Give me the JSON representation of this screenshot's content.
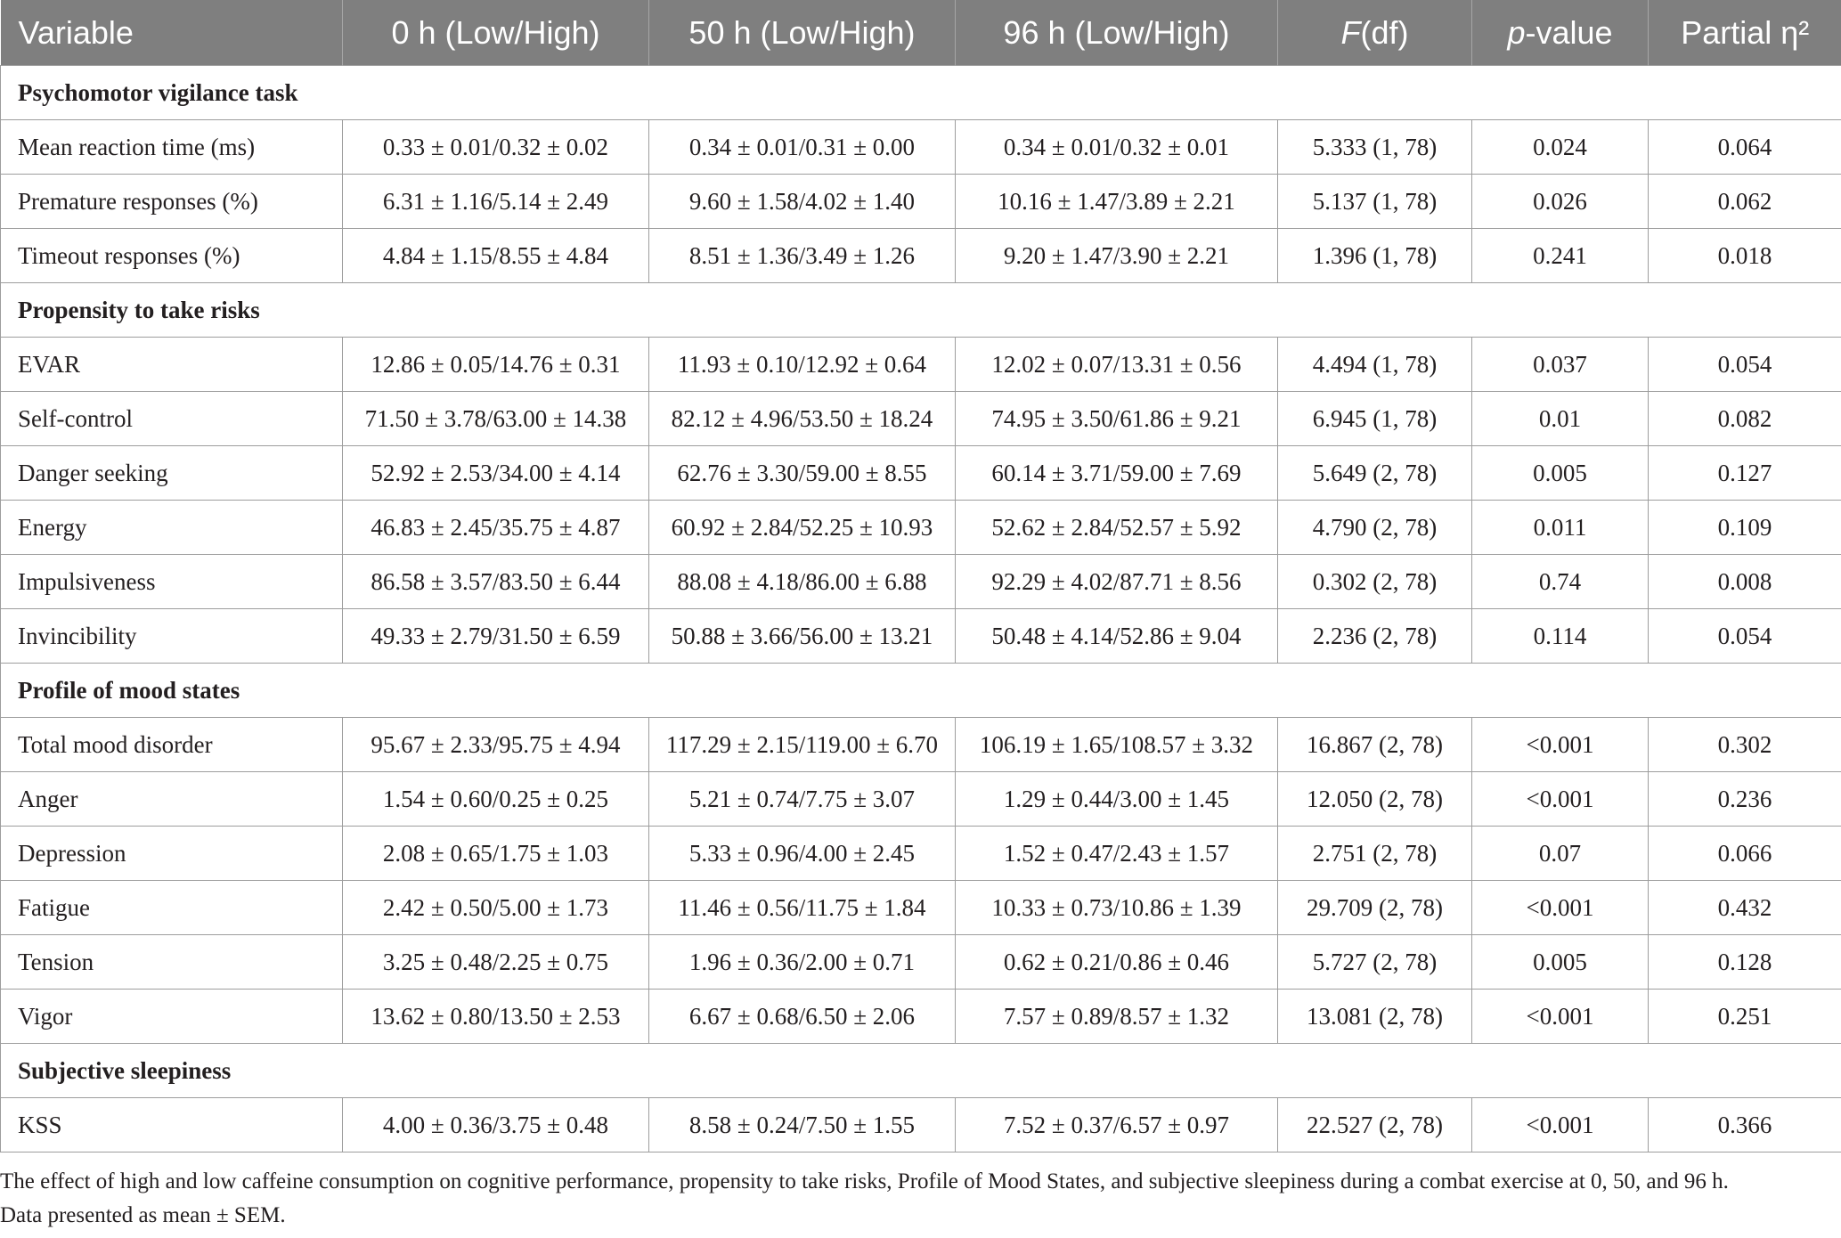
{
  "table": {
    "headers": [
      {
        "pre": "Variable",
        "em": "",
        "post": ""
      },
      {
        "pre": "0 h (Low/High)",
        "em": "",
        "post": ""
      },
      {
        "pre": "50 h (Low/High)",
        "em": "",
        "post": ""
      },
      {
        "pre": "96 h (Low/High)",
        "em": "",
        "post": ""
      },
      {
        "pre": "",
        "em": "F",
        "post": "(df)"
      },
      {
        "pre": "",
        "em": "p",
        "post": "-value"
      },
      {
        "pre": "Partial η²",
        "em": "",
        "post": ""
      }
    ],
    "sections": [
      {
        "title": "Psychomotor vigilance task",
        "rows": [
          [
            "Mean reaction time (ms)",
            "0.33 ± 0.01/0.32 ± 0.02",
            "0.34 ± 0.01/0.31 ± 0.00",
            "0.34 ± 0.01/0.32 ± 0.01",
            "5.333 (1, 78)",
            "0.024",
            "0.064"
          ],
          [
            "Premature responses (%)",
            "6.31 ± 1.16/5.14 ± 2.49",
            "9.60 ± 1.58/4.02 ± 1.40",
            "10.16 ± 1.47/3.89 ± 2.21",
            "5.137 (1, 78)",
            "0.026",
            "0.062"
          ],
          [
            "Timeout responses (%)",
            "4.84 ± 1.15/8.55 ± 4.84",
            "8.51 ± 1.36/3.49 ± 1.26",
            "9.20 ± 1.47/3.90 ± 2.21",
            "1.396 (1, 78)",
            "0.241",
            "0.018"
          ]
        ]
      },
      {
        "title": "Propensity to take risks",
        "rows": [
          [
            "EVAR",
            "12.86 ± 0.05/14.76 ± 0.31",
            "11.93 ± 0.10/12.92 ± 0.64",
            "12.02 ± 0.07/13.31 ± 0.56",
            "4.494 (1, 78)",
            "0.037",
            "0.054"
          ],
          [
            "Self-control",
            "71.50 ± 3.78/63.00 ± 14.38",
            "82.12 ± 4.96/53.50 ± 18.24",
            "74.95 ± 3.50/61.86 ± 9.21",
            "6.945 (1, 78)",
            "0.01",
            "0.082"
          ],
          [
            "Danger seeking",
            "52.92 ± 2.53/34.00 ± 4.14",
            "62.76 ± 3.30/59.00 ± 8.55",
            "60.14 ± 3.71/59.00 ± 7.69",
            "5.649 (2, 78)",
            "0.005",
            "0.127"
          ],
          [
            "Energy",
            "46.83 ± 2.45/35.75 ± 4.87",
            "60.92 ± 2.84/52.25 ± 10.93",
            "52.62 ± 2.84/52.57 ± 5.92",
            "4.790 (2, 78)",
            "0.011",
            "0.109"
          ],
          [
            "Impulsiveness",
            "86.58 ± 3.57/83.50 ± 6.44",
            "88.08 ± 4.18/86.00 ± 6.88",
            "92.29 ± 4.02/87.71 ± 8.56",
            "0.302 (2, 78)",
            "0.74",
            "0.008"
          ],
          [
            "Invincibility",
            "49.33 ± 2.79/31.50 ± 6.59",
            "50.88 ± 3.66/56.00 ± 13.21",
            "50.48 ± 4.14/52.86 ± 9.04",
            "2.236 (2, 78)",
            "0.114",
            "0.054"
          ]
        ]
      },
      {
        "title": "Profile of mood states",
        "rows": [
          [
            "Total mood disorder",
            "95.67 ± 2.33/95.75 ± 4.94",
            "117.29 ± 2.15/119.00 ± 6.70",
            "106.19 ± 1.65/108.57 ± 3.32",
            "16.867 (2, 78)",
            "<0.001",
            "0.302"
          ],
          [
            "Anger",
            "1.54 ± 0.60/0.25 ± 0.25",
            "5.21 ± 0.74/7.75 ± 3.07",
            "1.29 ± 0.44/3.00 ± 1.45",
            "12.050 (2, 78)",
            "<0.001",
            "0.236"
          ],
          [
            "Depression",
            "2.08 ± 0.65/1.75 ± 1.03",
            "5.33 ± 0.96/4.00 ± 2.45",
            "1.52 ± 0.47/2.43 ± 1.57",
            "2.751 (2, 78)",
            "0.07",
            "0.066"
          ],
          [
            "Fatigue",
            "2.42 ± 0.50/5.00 ± 1.73",
            "11.46 ± 0.56/11.75 ± 1.84",
            "10.33 ± 0.73/10.86 ± 1.39",
            "29.709 (2, 78)",
            "<0.001",
            "0.432"
          ],
          [
            "Tension",
            "3.25 ± 0.48/2.25 ± 0.75",
            "1.96 ± 0.36/2.00 ± 0.71",
            "0.62 ± 0.21/0.86 ± 0.46",
            "5.727 (2, 78)",
            "0.005",
            "0.128"
          ],
          [
            "Vigor",
            "13.62 ± 0.80/13.50 ± 2.53",
            "6.67 ± 0.68/6.50 ± 2.06",
            "7.57 ± 0.89/8.57 ± 1.32",
            "13.081 (2, 78)",
            "<0.001",
            "0.251"
          ]
        ]
      },
      {
        "title": "Subjective sleepiness",
        "rows": [
          [
            "KSS",
            "4.00 ± 0.36/3.75 ± 0.48",
            "8.58 ± 0.24/7.50 ± 1.55",
            "7.52 ± 0.37/6.57 ± 0.97",
            "22.527 (2, 78)",
            "<0.001",
            "0.366"
          ]
        ]
      }
    ]
  },
  "caption": {
    "line1": "The effect of high and low caffeine consumption on cognitive performance, propensity to take risks, Profile of Mood States, and subjective sleepiness during a combat exercise at 0, 50, and 96 h.",
    "line2": "Data presented as mean ± SEM."
  },
  "colors": {
    "header_bg": "#7f7f7f",
    "header_text": "#ffffff",
    "grid": "#9d9d9d",
    "body_text": "#231f20"
  }
}
